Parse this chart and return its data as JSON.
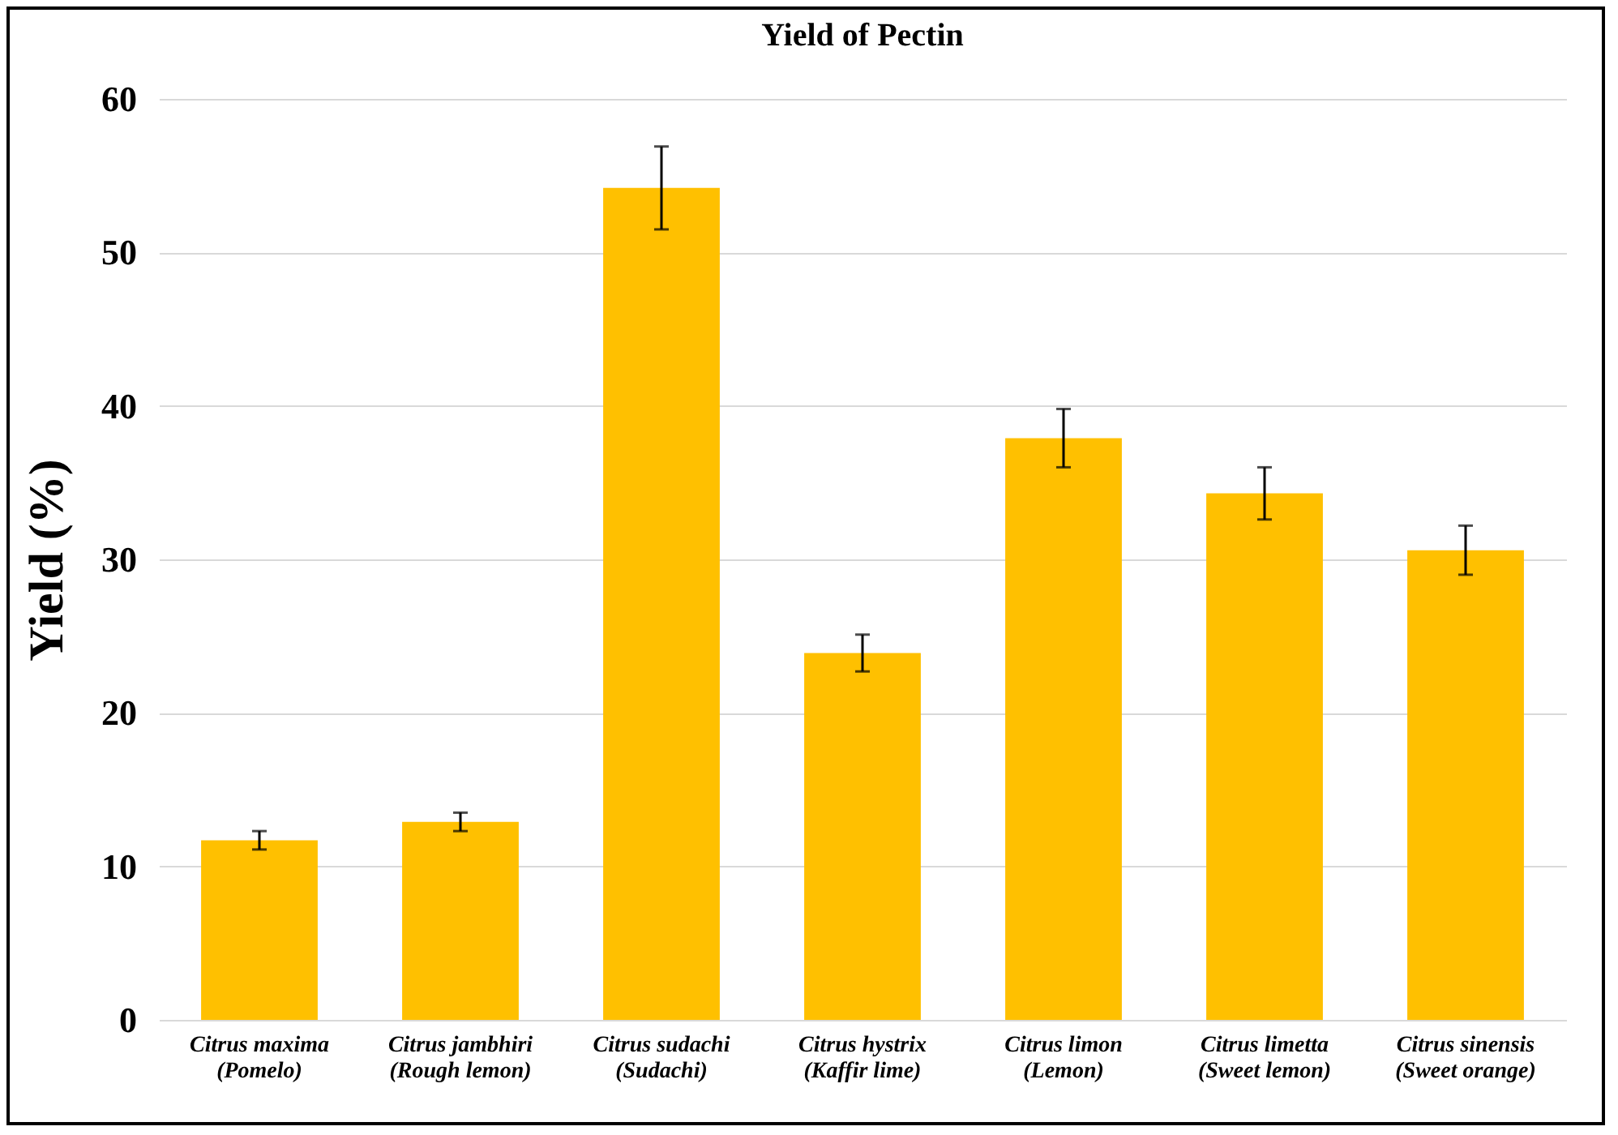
{
  "chart_data": {
    "type": "bar",
    "title": "Yield of Pectin",
    "ylabel": "Yield (%)",
    "categories": [
      "Citrus maxima\n(Pomelo)",
      "Citrus jambhiri\n(Rough lemon)",
      "Citrus sudachi\n(Sudachi)",
      "Citrus hystrix\n(Kaffir lime)",
      "Citrus limon\n(Lemon)",
      "Citrus limetta\n(Sweet lemon)",
      "Citrus sinensis\n(Sweet orange)"
    ],
    "values": [
      11.7,
      12.9,
      54.2,
      23.9,
      37.9,
      34.3,
      30.6
    ],
    "errors": [
      0.6,
      0.6,
      2.7,
      1.2,
      1.9,
      1.7,
      1.6
    ],
    "color": "#ffc000",
    "ylim": [
      0,
      60
    ],
    "yticks": [
      0,
      10,
      20,
      30,
      40,
      50,
      60
    ],
    "grid": "y"
  }
}
